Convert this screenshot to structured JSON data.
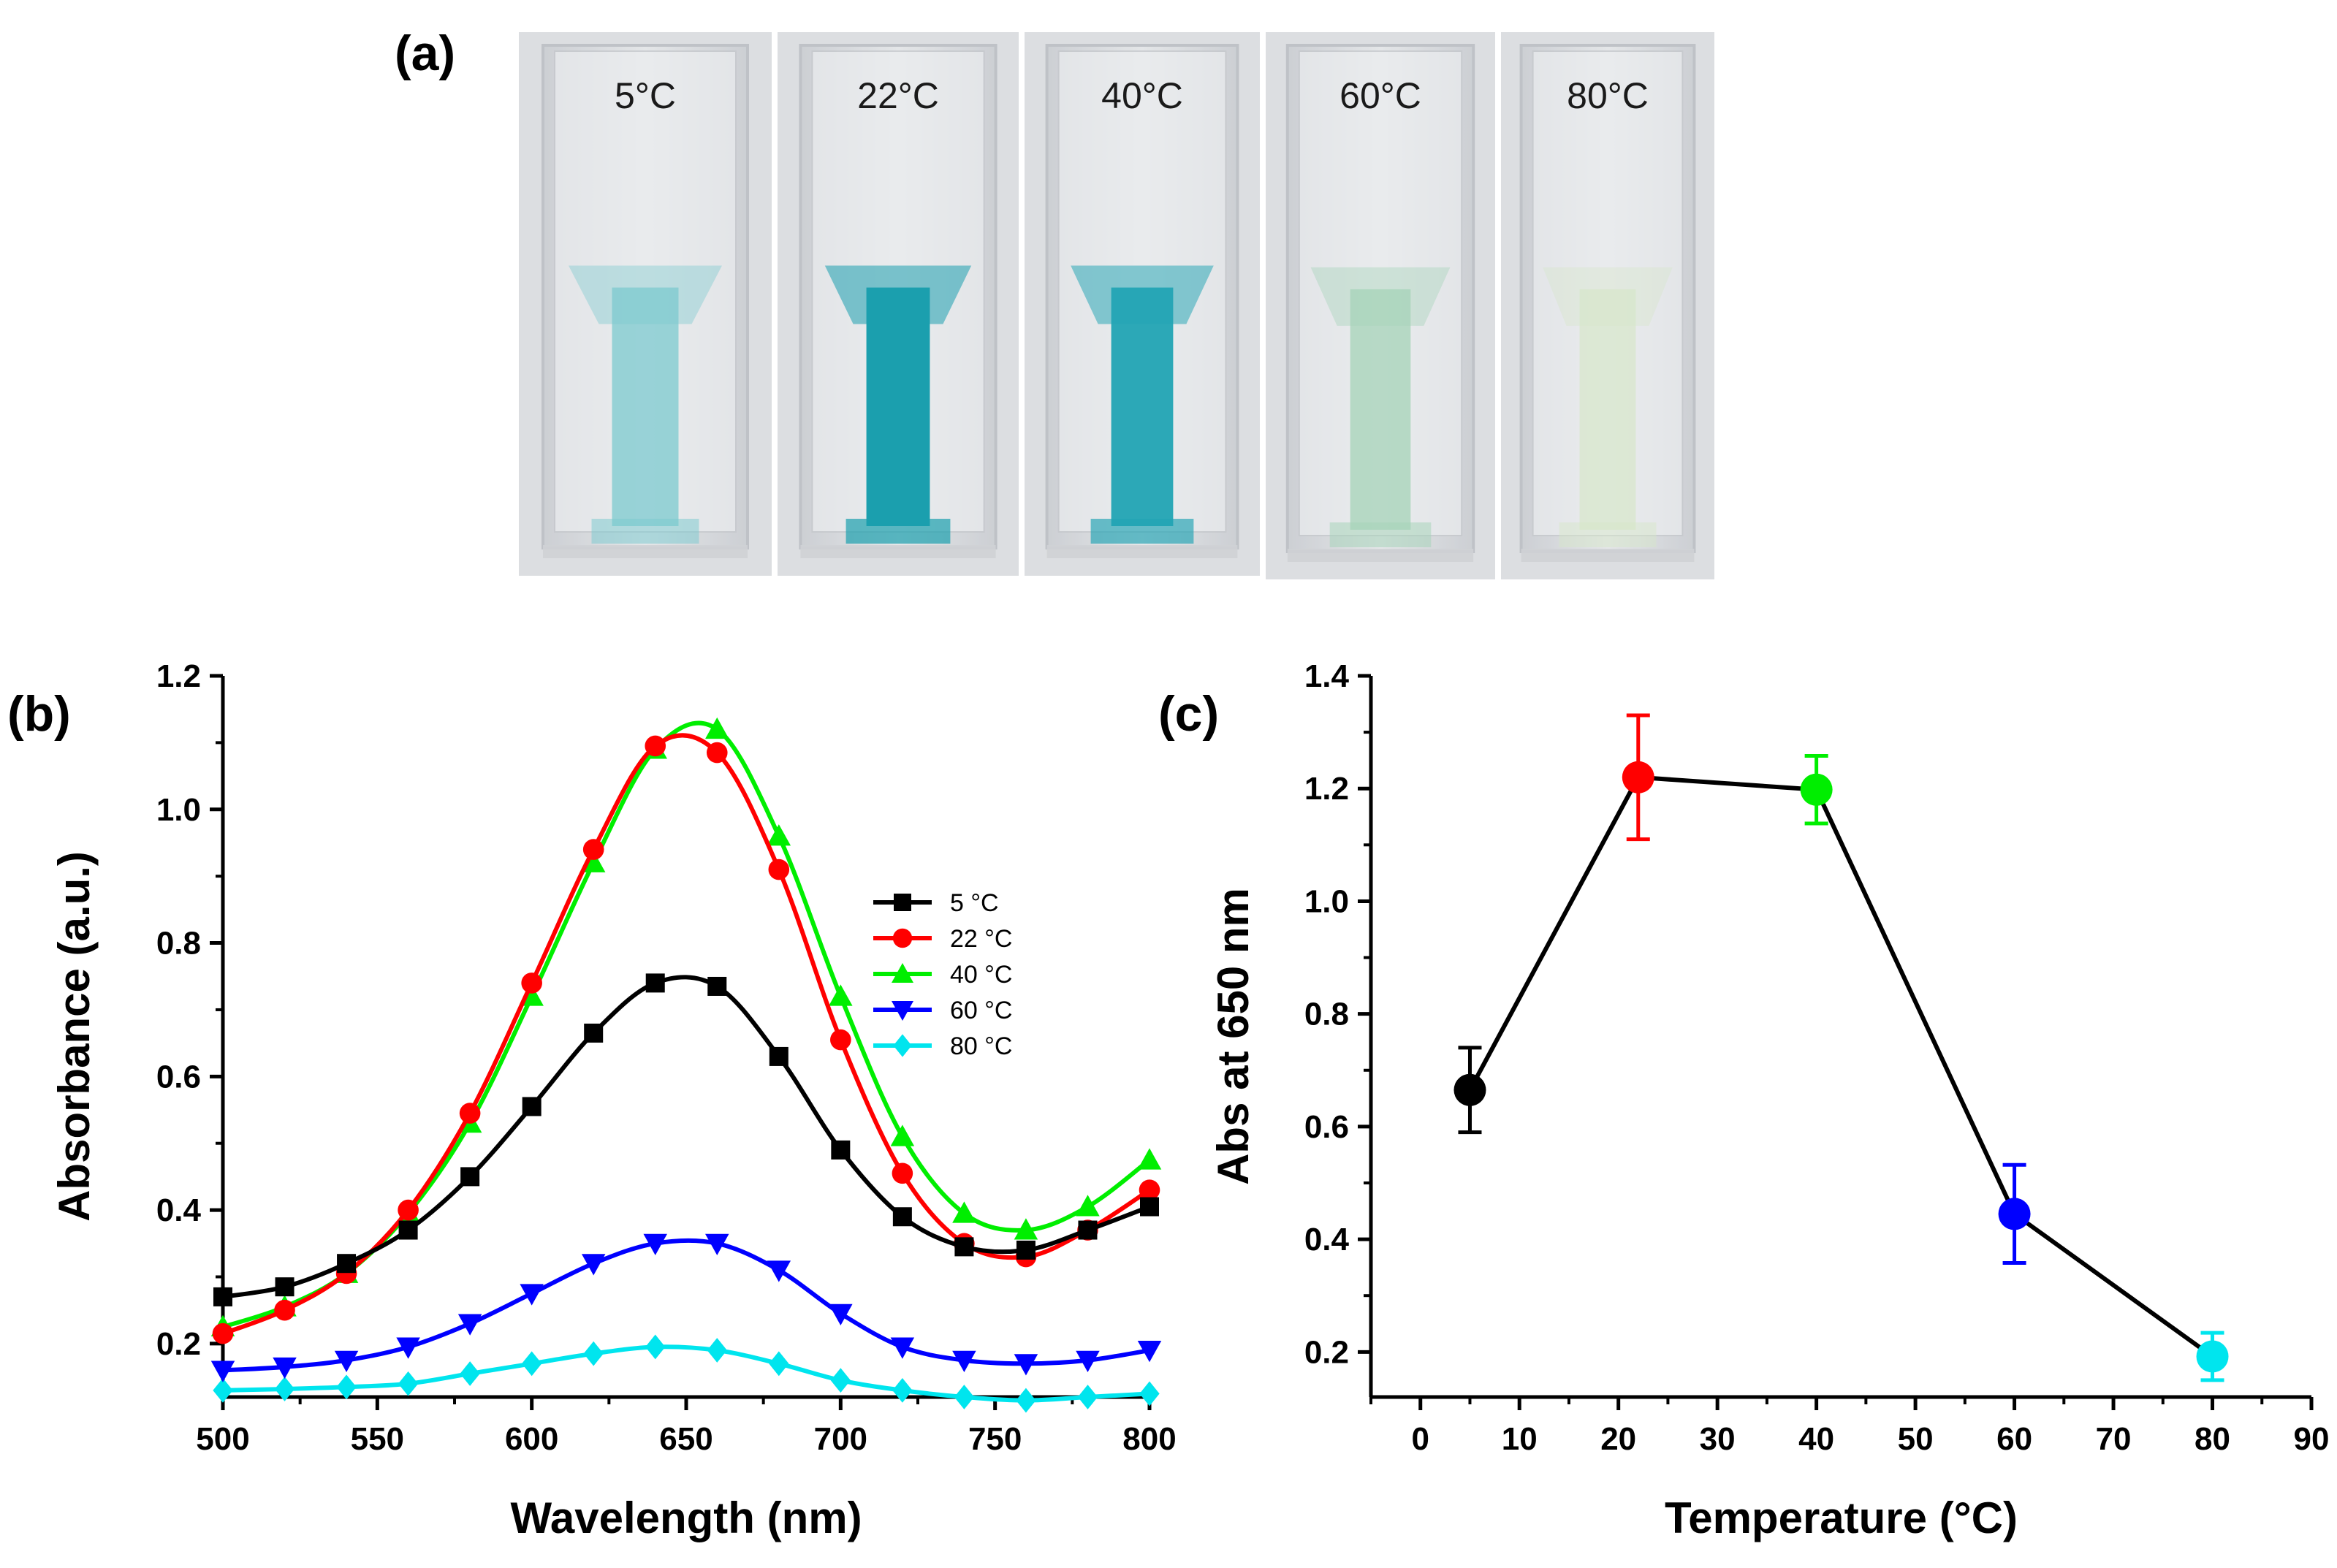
{
  "panel_labels": {
    "a": "(a)",
    "b": "(b)",
    "c": "(c)"
  },
  "photo": {
    "samples": [
      {
        "label": "5°C",
        "liquid_color": "#7cc9cf",
        "opacity": 0.75
      },
      {
        "label": "22°C",
        "liquid_color": "#1b9fae",
        "opacity": 1.0
      },
      {
        "label": "40°C",
        "liquid_color": "#22a4b4",
        "opacity": 0.95
      },
      {
        "label": "60°C",
        "liquid_color": "#a6d3b8",
        "opacity": 0.75
      },
      {
        "label": "80°C",
        "liquid_color": "#d6e6c8",
        "opacity": 0.65
      }
    ]
  },
  "chart_data": [
    {
      "id": "b",
      "type": "line",
      "title": "",
      "xlabel": "Wavelength (nm)",
      "ylabel": "Absorbance (a.u.)",
      "xlim": [
        500,
        800
      ],
      "ylim": [
        0.12,
        1.2
      ],
      "xticks": [
        500,
        550,
        600,
        650,
        700,
        750,
        800
      ],
      "yticks": [
        0.2,
        0.4,
        0.6,
        0.8,
        1.0,
        1.2
      ],
      "ytick_labels": [
        "0.2",
        "0.4",
        "0.6",
        "0.8",
        "1.0",
        "1.2"
      ],
      "legend_position": "center-right",
      "x": [
        500,
        520,
        540,
        560,
        580,
        600,
        620,
        640,
        660,
        680,
        700,
        720,
        740,
        760,
        780,
        800
      ],
      "series": [
        {
          "name": "5",
          "unit": "°C",
          "color": "#000000",
          "marker": "square",
          "values": [
            0.27,
            0.285,
            0.32,
            0.37,
            0.45,
            0.555,
            0.665,
            0.74,
            0.735,
            0.63,
            0.49,
            0.39,
            0.345,
            0.34,
            0.37,
            0.405
          ]
        },
        {
          "name": "22",
          "unit": "°C",
          "color": "#ff0000",
          "marker": "circle",
          "values": [
            0.215,
            0.25,
            0.305,
            0.4,
            0.545,
            0.74,
            0.94,
            1.095,
            1.085,
            0.91,
            0.655,
            0.455,
            0.35,
            0.33,
            0.37,
            0.43
          ]
        },
        {
          "name": "40",
          "unit": "°C",
          "color": "#00ee00",
          "marker": "triangle-up",
          "values": [
            0.225,
            0.255,
            0.305,
            0.395,
            0.53,
            0.72,
            0.92,
            1.09,
            1.12,
            0.96,
            0.72,
            0.51,
            0.395,
            0.37,
            0.405,
            0.475
          ]
        },
        {
          "name": "60",
          "unit": "°C",
          "color": "#0000ff",
          "marker": "triangle-down",
          "values": [
            0.16,
            0.165,
            0.175,
            0.195,
            0.23,
            0.275,
            0.32,
            0.35,
            0.35,
            0.31,
            0.245,
            0.195,
            0.175,
            0.17,
            0.175,
            0.19
          ]
        },
        {
          "name": "80",
          "unit": "°C",
          "color": "#00e5ee",
          "marker": "diamond",
          "values": [
            0.13,
            0.132,
            0.135,
            0.14,
            0.155,
            0.17,
            0.185,
            0.195,
            0.19,
            0.17,
            0.145,
            0.13,
            0.12,
            0.115,
            0.12,
            0.125
          ]
        }
      ]
    },
    {
      "id": "c",
      "type": "scatter",
      "title": "",
      "xlabel": "Temperature (°C)",
      "ylabel": "Abs at 650 nm",
      "xlim": [
        -5,
        90
      ],
      "ylim": [
        0.12,
        1.4
      ],
      "xticks": [
        0,
        10,
        20,
        30,
        40,
        50,
        60,
        70,
        80,
        90
      ],
      "yticks": [
        0.2,
        0.4,
        0.6,
        0.8,
        1.0,
        1.2,
        1.4
      ],
      "ytick_labels": [
        "0.2",
        "0.4",
        "0.6",
        "0.8",
        "1.0",
        "1.2",
        "1.4"
      ],
      "connected": true,
      "points": [
        {
          "x": 5,
          "y": 0.665,
          "err": 0.075,
          "color": "#000000"
        },
        {
          "x": 22,
          "y": 1.22,
          "err": 0.11,
          "color": "#ff0000"
        },
        {
          "x": 40,
          "y": 1.198,
          "err": 0.06,
          "color": "#00ee00"
        },
        {
          "x": 60,
          "y": 0.445,
          "err": 0.087,
          "color": "#0000ff"
        },
        {
          "x": 80,
          "y": 0.192,
          "err": 0.042,
          "color": "#00e5ee"
        }
      ]
    }
  ]
}
